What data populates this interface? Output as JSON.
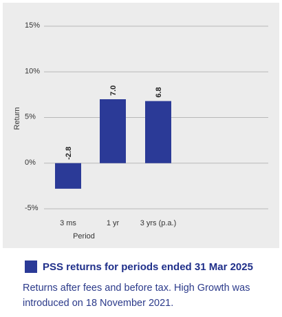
{
  "chart_data": {
    "type": "bar",
    "categories": [
      "3 ms",
      "1 yr",
      "3 yrs (p.a.)"
    ],
    "values": [
      -2.8,
      7.0,
      6.8
    ],
    "data_labels": [
      "-2.8",
      "7.0",
      "6.8"
    ],
    "xlabel": "Period",
    "ylabel": "Return",
    "ylim": [
      -5,
      15
    ],
    "yticks": [
      15,
      10,
      5,
      0,
      -5
    ],
    "ytick_labels": [
      "15%",
      "10%",
      "5%",
      "0%",
      "-5%"
    ],
    "grid": true,
    "bar_color": "#2b3a97",
    "background_color": "#ececec"
  },
  "legend": {
    "label": "PSS returns for periods ended 31 Mar 2025",
    "color": "#2b3a97"
  },
  "caption": "Returns after fees and before tax. High Growth was introduced on 18 November 2021."
}
